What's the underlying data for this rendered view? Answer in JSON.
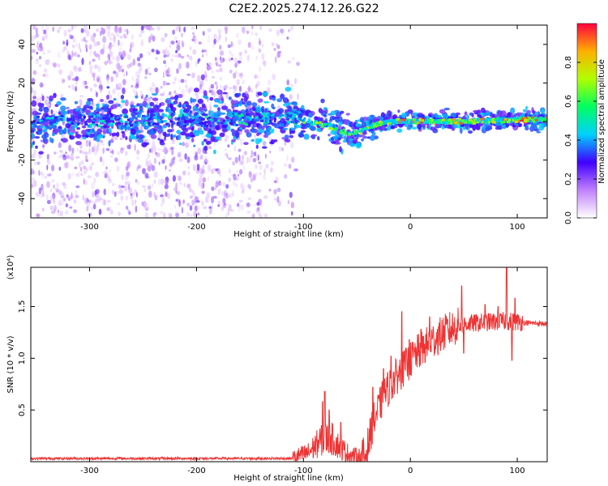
{
  "title": "C2E2.2025.274.12.26.G22",
  "chart_data": [
    {
      "type": "heatmap",
      "name": "spectrogram",
      "xlabel": "Height of straight line (km)",
      "ylabel": "Frequency (Hz)",
      "xlim": [
        -355,
        128
      ],
      "ylim": [
        -50,
        50
      ],
      "xticks": [
        -300,
        -200,
        -100,
        0,
        100
      ],
      "yticks": [
        -40,
        -20,
        0,
        20,
        40
      ],
      "ridge": [
        {
          "x": -355,
          "y": 0
        },
        {
          "x": -140,
          "y": 1
        },
        {
          "x": -110,
          "y": 2
        },
        {
          "x": -95,
          "y": 0
        },
        {
          "x": -80,
          "y": -2
        },
        {
          "x": -65,
          "y": -5
        },
        {
          "x": -55,
          "y": -6
        },
        {
          "x": -45,
          "y": -5
        },
        {
          "x": -35,
          "y": -2
        },
        {
          "x": -20,
          "y": 0
        },
        {
          "x": 0,
          "y": 0
        },
        {
          "x": 50,
          "y": 0
        },
        {
          "x": 100,
          "y": 1
        },
        {
          "x": 128,
          "y": 1
        }
      ],
      "colorbar": {
        "label": "Normalized spectral amplitude",
        "ticks": [
          "0.0",
          "0.2",
          "0.4",
          "0.6",
          "0.8"
        ],
        "colors": [
          "#ffffff",
          "#c080ff",
          "#4000ff",
          "#00d0ff",
          "#00ff60",
          "#b0ff00",
          "#ffb000",
          "#ff0040"
        ]
      }
    },
    {
      "type": "line",
      "name": "snr",
      "series": [
        {
          "name": "SNR",
          "color": "#ee3333"
        }
      ],
      "xlabel": "Height of straight line (km)",
      "ylabel": "SNR (10 * v/v)",
      "scale_label": "(x10⁴)",
      "xlim": [
        -355,
        128
      ],
      "ylim": [
        0,
        1.88
      ],
      "xticks": [
        -300,
        -200,
        -100,
        0,
        100
      ],
      "yticks": [
        "0.5",
        "1.0",
        "1.5"
      ],
      "trend": [
        {
          "x": -355,
          "y": 0.03
        },
        {
          "x": -200,
          "y": 0.03
        },
        {
          "x": -110,
          "y": 0.03
        },
        {
          "x": -95,
          "y": 0.08
        },
        {
          "x": -85,
          "y": 0.18
        },
        {
          "x": -75,
          "y": 0.22
        },
        {
          "x": -65,
          "y": 0.12
        },
        {
          "x": -55,
          "y": 0.05
        },
        {
          "x": -42,
          "y": 0.04
        },
        {
          "x": -35,
          "y": 0.35
        },
        {
          "x": -25,
          "y": 0.62
        },
        {
          "x": -15,
          "y": 0.78
        },
        {
          "x": -5,
          "y": 0.9
        },
        {
          "x": 5,
          "y": 1.02
        },
        {
          "x": 20,
          "y": 1.15
        },
        {
          "x": 35,
          "y": 1.25
        },
        {
          "x": 50,
          "y": 1.32
        },
        {
          "x": 70,
          "y": 1.34
        },
        {
          "x": 90,
          "y": 1.35
        },
        {
          "x": 110,
          "y": 1.34
        },
        {
          "x": 128,
          "y": 1.33
        }
      ],
      "spikes": [
        {
          "x": -80,
          "y": 0.68
        },
        {
          "x": -82,
          "y": 0.58
        },
        {
          "x": -76,
          "y": 0.5
        },
        {
          "x": -65,
          "y": 0.38
        },
        {
          "x": -35,
          "y": 0.72
        },
        {
          "x": -25,
          "y": 0.9
        },
        {
          "x": -18,
          "y": 1.02
        },
        {
          "x": -8,
          "y": 1.45
        },
        {
          "x": -1,
          "y": 1.18
        },
        {
          "x": 10,
          "y": 1.28
        },
        {
          "x": 18,
          "y": 1.4
        },
        {
          "x": 48,
          "y": 1.7
        },
        {
          "x": 50,
          "y": 1.05
        },
        {
          "x": 70,
          "y": 1.52
        },
        {
          "x": 82,
          "y": 1.5
        },
        {
          "x": 90,
          "y": 1.88
        },
        {
          "x": 95,
          "y": 0.98
        },
        {
          "x": 98,
          "y": 1.58
        }
      ]
    }
  ]
}
